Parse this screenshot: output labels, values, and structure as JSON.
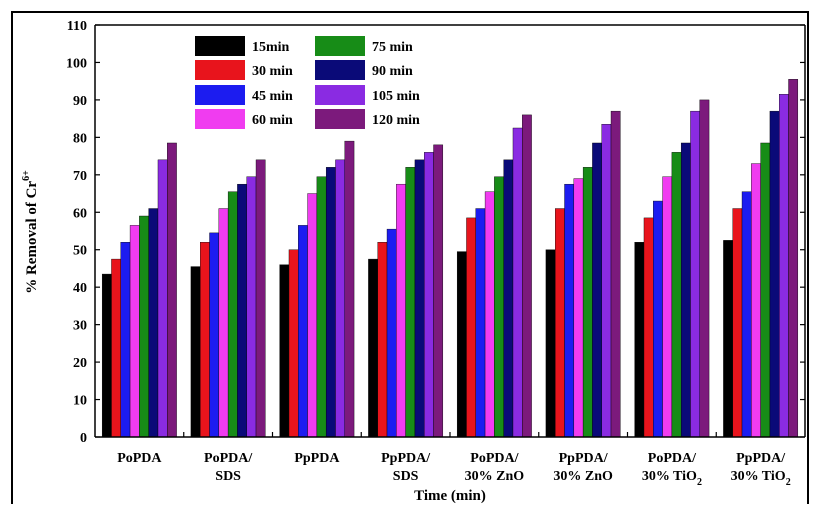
{
  "chart_data": {
    "type": "bar",
    "title": "",
    "xlabel": "Time (min)",
    "ylabel": "% Removal of Cr",
    "ylabel_superscript": "6+",
    "ylim": [
      0,
      110
    ],
    "yticks": [
      0,
      10,
      20,
      30,
      40,
      50,
      60,
      70,
      80,
      90,
      100,
      110
    ],
    "grid": false,
    "legend_position": "top-left",
    "categories": [
      [
        "PoPDA"
      ],
      [
        "PoPDA/",
        "SDS"
      ],
      [
        "PpPDA"
      ],
      [
        "PpPDA/",
        "SDS"
      ],
      [
        "PoPDA/",
        "30% ZnO"
      ],
      [
        "PpPDA/",
        "30% ZnO"
      ],
      [
        "PoPDA/",
        "30% TiO",
        "2"
      ],
      [
        "PpPDA/",
        "30% TiO",
        "2"
      ]
    ],
    "series": [
      {
        "name": "15min",
        "color": "#000000",
        "values": [
          43.5,
          45.5,
          46,
          47.5,
          49.5,
          50,
          52,
          52.5
        ]
      },
      {
        "name": "30 min",
        "color": "#e8141c",
        "values": [
          47.5,
          52,
          50,
          52,
          58.5,
          61,
          58.5,
          61
        ]
      },
      {
        "name": "45 min",
        "color": "#1c1cf0",
        "values": [
          52,
          54.5,
          56.5,
          55.5,
          61,
          67.5,
          63,
          65.5
        ]
      },
      {
        "name": "60 min",
        "color": "#f03cf0",
        "values": [
          56.5,
          61,
          65,
          67.5,
          65.5,
          69,
          69.5,
          73
        ]
      },
      {
        "name": "75 min",
        "color": "#178c17",
        "values": [
          59,
          65.5,
          69.5,
          72,
          69.5,
          72,
          76,
          78.5
        ]
      },
      {
        "name": "90 min",
        "color": "#0a0a78",
        "values": [
          61,
          67.5,
          72,
          74,
          74,
          78.5,
          78.5,
          87
        ]
      },
      {
        "name": "105 min",
        "color": "#8a2be2",
        "values": [
          74,
          69.5,
          74,
          76,
          82.5,
          83.5,
          87,
          91.5
        ]
      },
      {
        "name": "120 min",
        "color": "#7c1a7c",
        "values": [
          78.5,
          74,
          79,
          78,
          86,
          87,
          90,
          95.5
        ]
      }
    ]
  }
}
